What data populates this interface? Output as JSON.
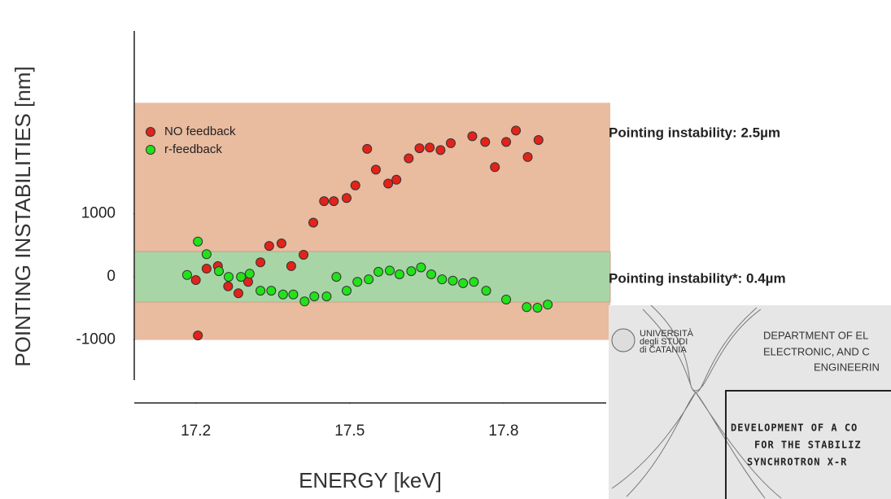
{
  "chart_data": {
    "type": "scatter",
    "x_label": "ENERGY [keV]",
    "y_label": "POINTING INSTABILITIES [nm]",
    "xlim": [
      17.08,
      18.0
    ],
    "ylim": [
      -2000,
      3900
    ],
    "xticks": [
      17.2,
      17.5,
      17.8
    ],
    "yticks": [
      -1000,
      0,
      1000
    ],
    "legend": "upper left",
    "bands": [
      {
        "from": -1000,
        "to": 2760,
        "color": "#e9bb9f"
      },
      {
        "from": -400,
        "to": 400,
        "color": "#a8d5a6"
      }
    ],
    "annotations": [
      "Pointing instability: 2.5µm",
      "Pointing instability*: 0.4µm"
    ],
    "series": [
      {
        "name": "NO feedback",
        "color": "#e2231a",
        "x": [
          17.204,
          17.2,
          17.221,
          17.243,
          17.263,
          17.283,
          17.302,
          17.326,
          17.343,
          17.367,
          17.386,
          17.41,
          17.429,
          17.45,
          17.469,
          17.494,
          17.511,
          17.534,
          17.551,
          17.575,
          17.591,
          17.615,
          17.636,
          17.656,
          17.677,
          17.697,
          17.739,
          17.764,
          17.783,
          17.805,
          17.824,
          17.847,
          17.868
        ],
        "values": [
          -930,
          -50,
          130,
          170,
          -150,
          -260,
          -80,
          230,
          490,
          530,
          170,
          350,
          860,
          1200,
          1200,
          1250,
          1450,
          2030,
          1700,
          1480,
          1540,
          1880,
          2040,
          2050,
          2010,
          2120,
          2230,
          2140,
          1740,
          2140,
          2320,
          1900,
          2170
        ]
      },
      {
        "name": "r-feedback",
        "color": "#22e21a",
        "x": [
          17.183,
          17.204,
          17.221,
          17.245,
          17.264,
          17.288,
          17.305,
          17.326,
          17.347,
          17.37,
          17.39,
          17.412,
          17.431,
          17.455,
          17.474,
          17.494,
          17.515,
          17.537,
          17.556,
          17.578,
          17.597,
          17.62,
          17.639,
          17.659,
          17.68,
          17.701,
          17.721,
          17.742,
          17.766,
          17.805,
          17.845,
          17.866,
          17.886
        ],
        "values": [
          30,
          560,
          360,
          90,
          0,
          0,
          50,
          -220,
          -220,
          -280,
          -280,
          -390,
          -310,
          -310,
          0,
          -220,
          -80,
          -40,
          80,
          100,
          40,
          90,
          150,
          40,
          -40,
          -60,
          -100,
          -80,
          -220,
          -360,
          -480,
          -490,
          -440
        ]
      }
    ]
  },
  "inset": {
    "university": [
      "UNIVERSITÀ",
      "degli STUDI",
      "di CATANIA"
    ],
    "department": [
      "DEPARTMENT OF EL",
      "ELECTRONIC, AND C",
      "ENGINEERIN"
    ],
    "title": [
      "DEVELOPMENT OF A CO",
      "FOR THE STABILIZ",
      "SYNCHROTRON X-R"
    ]
  }
}
